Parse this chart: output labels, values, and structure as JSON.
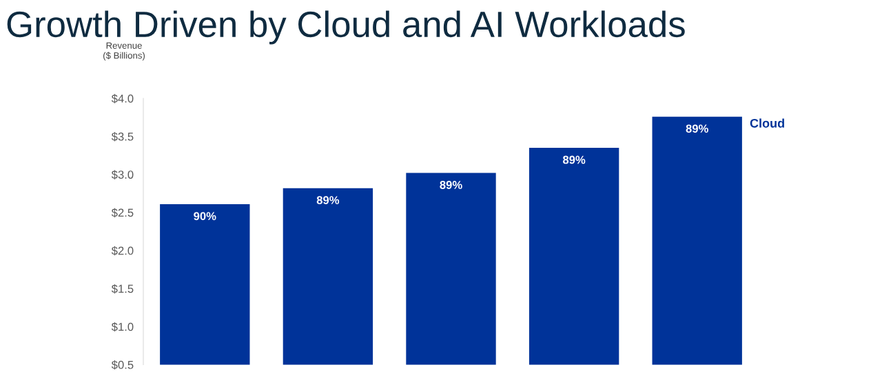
{
  "chart_data": {
    "type": "bar",
    "title": "Growth Driven by Cloud and AI Workloads",
    "ylabel": "Revenue\n($ Billions)",
    "categories": [
      null,
      null,
      null,
      null,
      null
    ],
    "series": [
      {
        "name": "Cloud",
        "color": "#003399",
        "values": [
          2.61,
          2.82,
          3.02,
          3.35,
          3.76
        ]
      }
    ],
    "annotations": [
      "90%",
      "89%",
      "89%",
      "89%",
      "89%"
    ],
    "ylim": [
      0.5,
      4.0
    ],
    "yticks": [
      {
        "value": 0.5,
        "label": "$0.5"
      },
      {
        "value": 1.0,
        "label": "$1.0"
      },
      {
        "value": 1.5,
        "label": "$1.5"
      },
      {
        "value": 2.0,
        "label": "$2.0"
      },
      {
        "value": 2.5,
        "label": "$2.5"
      },
      {
        "value": 3.0,
        "label": "$3.0"
      },
      {
        "value": 3.5,
        "label": "$3.5"
      },
      {
        "value": 4.0,
        "label": "$4.0"
      }
    ],
    "grid": false,
    "legend": false
  }
}
